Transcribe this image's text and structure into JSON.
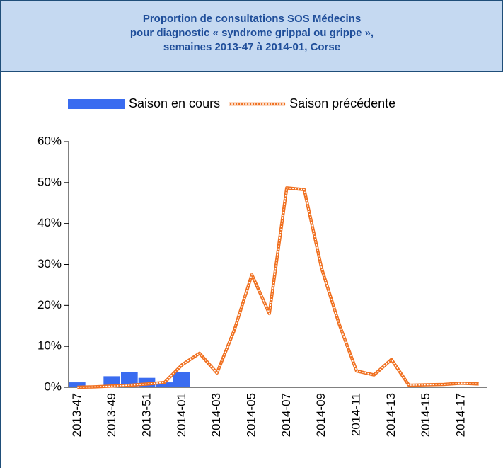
{
  "chart_data": {
    "type": "bar_line",
    "title": [
      "Proportion de consultations SOS Médecins",
      "pour diagnostic « syndrome grippal ou grippe »,",
      "semaines 2013-47 à 2014-01, Corse"
    ],
    "categories": [
      "2013-47",
      null,
      "2013-49",
      null,
      "2013-51",
      null,
      "2014-01",
      null,
      "2014-03",
      null,
      "2014-05",
      null,
      "2014-07",
      null,
      "2014-09",
      null,
      "2014-11",
      null,
      "2014-13",
      null,
      "2014-15",
      null,
      "2014-17",
      null
    ],
    "series": [
      {
        "name": "Saison en cours",
        "type": "bar",
        "color": "#3a6cf0",
        "values": [
          1.2,
          0,
          2.7,
          3.7,
          2.3,
          1.2,
          3.7,
          null,
          null,
          null,
          null,
          null,
          null,
          null,
          null,
          null,
          null,
          null,
          null,
          null,
          null,
          null,
          null,
          null
        ]
      },
      {
        "name": "Saison précédente",
        "type": "line",
        "color": "#f07020",
        "values": [
          0,
          0.1,
          0.3,
          0.5,
          0.8,
          1.2,
          5.5,
          8.3,
          3.5,
          14,
          27.5,
          18,
          48.7,
          48.3,
          29,
          15.5,
          4,
          3,
          6.8,
          0.5,
          0.6,
          0.7,
          1.0,
          0.8
        ]
      }
    ],
    "ylim": [
      0,
      60
    ],
    "yticks": [
      {
        "value": 0,
        "label": "0%"
      },
      {
        "value": 10,
        "label": "10%"
      },
      {
        "value": 20,
        "label": "20%"
      },
      {
        "value": 30,
        "label": "30%"
      },
      {
        "value": 40,
        "label": "40%"
      },
      {
        "value": 50,
        "label": "50%"
      },
      {
        "value": 60,
        "label": "60%"
      }
    ],
    "legend": "top"
  }
}
